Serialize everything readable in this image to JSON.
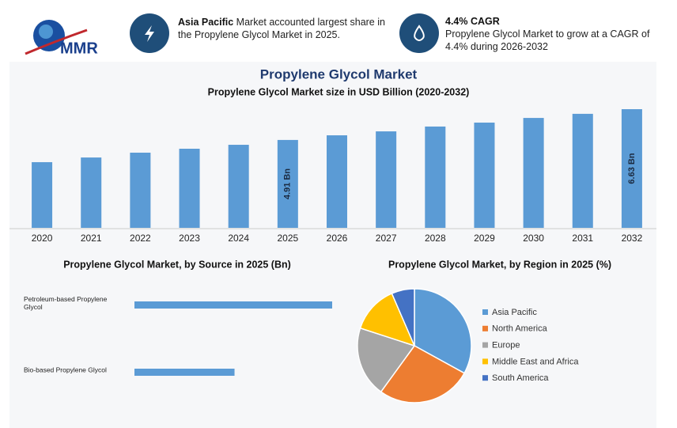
{
  "header": {
    "logo": "MMR",
    "title": "Propylene Glycol Market",
    "facts": [
      {
        "heading": "Asia Pacific",
        "text": "Market accounted largest share in the Propylene Glycol Market in 2025."
      },
      {
        "heading": "4.4% CAGR",
        "text": "Propylene Glycol Market to grow at a CAGR of 4.4% during 2026-2032"
      }
    ]
  },
  "chart_data": [
    {
      "type": "bar",
      "title": "Propylene Glycol Market size in USD Billion (2020-2032)",
      "categories": [
        "2020",
        "2021",
        "2022",
        "2023",
        "2024",
        "2025",
        "2026",
        "2027",
        "2028",
        "2029",
        "2030",
        "2031",
        "2032"
      ],
      "values": [
        3.67,
        3.93,
        4.2,
        4.42,
        4.64,
        4.91,
        5.17,
        5.39,
        5.66,
        5.88,
        6.14,
        6.37,
        6.63
      ],
      "value_labels": [
        null,
        null,
        null,
        null,
        null,
        "4.91 Bn",
        null,
        null,
        null,
        null,
        null,
        null,
        "6.63 Bn"
      ],
      "color": "#5b9bd5"
    },
    {
      "type": "barh",
      "title": "Propylene Glycol Market, by Source in 2025 (Bn)",
      "categories": [
        "Petroleum-based Propylene Glycol",
        "Bio-based Propylene Glycol"
      ],
      "values": [
        3.26,
        1.65
      ],
      "color": "#5b9bd5"
    },
    {
      "type": "pie",
      "title": "Propylene Glycol Market, by Region in 2025 (%)",
      "categories": [
        "Asia Pacific",
        "North America",
        "Europe",
        "Middle East and Africa",
        "South America"
      ],
      "values": [
        33,
        27,
        20,
        13.5,
        6.5
      ],
      "colors": [
        "#5b9bd5",
        "#ed7d31",
        "#a5a5a5",
        "#ffc000",
        "#4472c4"
      ]
    }
  ]
}
